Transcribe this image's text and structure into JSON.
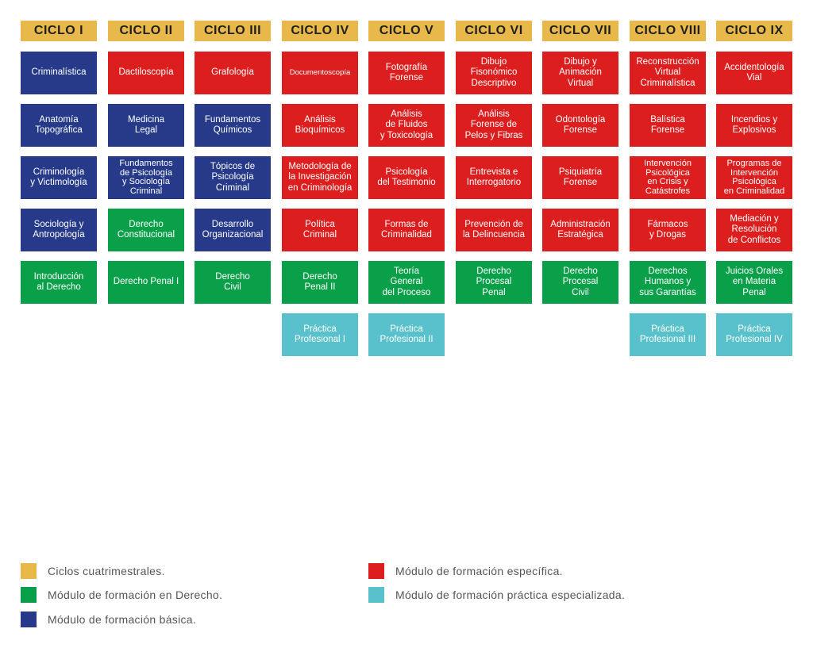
{
  "colors": {
    "ciclo": "#e9b84a",
    "basic": "#273a8a",
    "law": "#0aa04a",
    "specific": "#dd1e1e",
    "practice": "#59c1cb"
  },
  "columns": [
    {
      "header": "CICLO I",
      "cells": [
        {
          "text": "Criminalística",
          "type": "basic"
        },
        {
          "text": "Anatomía\nTopográfica",
          "type": "basic"
        },
        {
          "text": "Criminología\ny Victimología",
          "type": "basic"
        },
        {
          "text": "Sociología y\nAntropología",
          "type": "basic"
        },
        {
          "text": "Introducción\nal Derecho",
          "type": "law"
        }
      ]
    },
    {
      "header": "CICLO II",
      "cells": [
        {
          "text": "Dactiloscopía",
          "type": "specific"
        },
        {
          "text": "Medicina\nLegal",
          "type": "basic"
        },
        {
          "text": "Fundamentos\nde Psicología\ny Sociología\nCriminal",
          "type": "basic"
        },
        {
          "text": "Derecho\nConstitucional",
          "type": "law"
        },
        {
          "text": "Derecho Penal I",
          "type": "law"
        }
      ]
    },
    {
      "header": "CICLO III",
      "cells": [
        {
          "text": "Grafología",
          "type": "specific"
        },
        {
          "text": "Fundamentos\nQuímicos",
          "type": "basic"
        },
        {
          "text": "Tópicos de\nPsicología\nCriminal",
          "type": "basic"
        },
        {
          "text": "Desarrollo\nOrganizacional",
          "type": "basic"
        },
        {
          "text": "Derecho\nCivil",
          "type": "law"
        }
      ]
    },
    {
      "header": "CICLO IV",
      "cells": [
        {
          "text": "Documentoscopía",
          "type": "specific"
        },
        {
          "text": "Análisis\nBioquímicos",
          "type": "specific"
        },
        {
          "text": "Metodología de\nla Investigación\nen Criminología",
          "type": "specific"
        },
        {
          "text": "Política\nCriminal",
          "type": "specific"
        },
        {
          "text": "Derecho\nPenal II",
          "type": "law"
        },
        {
          "text": "Práctica\nProfesional I",
          "type": "practice"
        }
      ]
    },
    {
      "header": "CICLO V",
      "cells": [
        {
          "text": "Fotografía\nForense",
          "type": "specific"
        },
        {
          "text": "Análisis\nde Fluidos\ny Toxicología",
          "type": "specific"
        },
        {
          "text": "Psicología\ndel Testimonio",
          "type": "specific"
        },
        {
          "text": "Formas de\nCriminalidad",
          "type": "specific"
        },
        {
          "text": "Teoría\nGeneral\ndel Proceso",
          "type": "law"
        },
        {
          "text": "Práctica\nProfesional II",
          "type": "practice"
        }
      ]
    },
    {
      "header": "CICLO VI",
      "cells": [
        {
          "text": "Dibujo\nFisonómico\nDescriptivo",
          "type": "specific"
        },
        {
          "text": "Análisis\nForense de\nPelos y Fibras",
          "type": "specific"
        },
        {
          "text": "Entrevista e\nInterrogatorio",
          "type": "specific"
        },
        {
          "text": "Prevención de\nla Delincuencia",
          "type": "specific"
        },
        {
          "text": "Derecho\nProcesal\nPenal",
          "type": "law"
        }
      ]
    },
    {
      "header": "CICLO VII",
      "cells": [
        {
          "text": "Dibujo y\nAnimación\nVirtual",
          "type": "specific"
        },
        {
          "text": "Odontología\nForense",
          "type": "specific"
        },
        {
          "text": "Psiquiatría\nForense",
          "type": "specific"
        },
        {
          "text": "Administración\nEstratégica",
          "type": "specific"
        },
        {
          "text": "Derecho\nProcesal\nCivil",
          "type": "law"
        }
      ]
    },
    {
      "header": "CICLO VIII",
      "cells": [
        {
          "text": "Reconstrucción\nVirtual\nCriminalística",
          "type": "specific"
        },
        {
          "text": "Balística\nForense",
          "type": "specific"
        },
        {
          "text": "Intervención\nPsicológica\nen Crisis y\nCatástrofes",
          "type": "specific"
        },
        {
          "text": "Fármacos\ny Drogas",
          "type": "specific"
        },
        {
          "text": "Derechos\nHumanos y\nsus Garantías",
          "type": "law"
        },
        {
          "text": "Práctica\nProfesional III",
          "type": "practice"
        }
      ]
    },
    {
      "header": "CICLO IX",
      "cells": [
        {
          "text": "Accidentología\nVial",
          "type": "specific"
        },
        {
          "text": "Incendios y\nExplosivos",
          "type": "specific"
        },
        {
          "text": "Programas de\nIntervención\nPsicológica\nen Criminalidad",
          "type": "specific"
        },
        {
          "text": "Mediación y\nResolución\nde Conflictos",
          "type": "specific"
        },
        {
          "text": "Juicios Orales\nen Materia\nPenal",
          "type": "law"
        },
        {
          "text": "Práctica\nProfesional IV",
          "type": "practice"
        }
      ]
    }
  ],
  "legend": {
    "ciclo": "Ciclos cuatrimestrales.",
    "law": "Módulo de formación en Derecho.",
    "basic": "Módulo de formación básica.",
    "specific": "Módulo de formación específica.",
    "practice": "Módulo de formación práctica especializada."
  }
}
